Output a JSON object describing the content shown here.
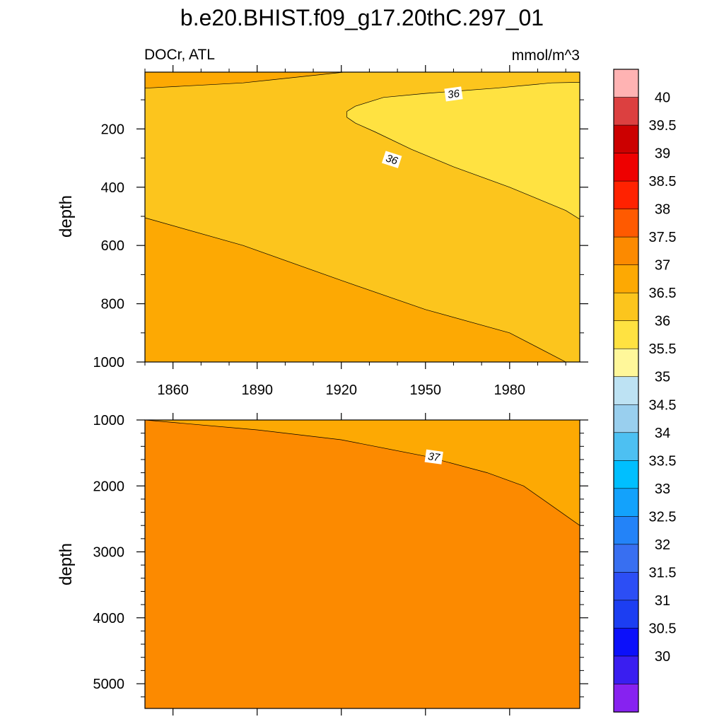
{
  "title": "b.e20.BHIST.f09_g17.20thC.297_01",
  "left_label": "DOCr, ATL",
  "right_label": "mmol/m^3",
  "colors": {
    "c35_36": "#ffe241",
    "c36_365": "#fcc51d",
    "c365_37": "#fda903",
    "c37_375": "#fc8a00"
  },
  "chart_data": [
    {
      "type": "contour",
      "panel": "upper",
      "x_ticks": [
        "1860",
        "1890",
        "1920",
        "1950",
        "1980"
      ],
      "xlim": [
        1850,
        2005
      ],
      "y_ticks": [
        "200",
        "400",
        "600",
        "800",
        "1000"
      ],
      "ylim": [
        1000,
        5
      ],
      "ylabel": "depth",
      "contour_labels": [
        {
          "text": "36",
          "x": 1960,
          "y": 80
        },
        {
          "text": "36",
          "x": 1938,
          "y": 305
        }
      ],
      "isolines": {
        "surface_36_5": [
          [
            1850,
            60
          ],
          [
            1885,
            42
          ],
          [
            1921,
            5
          ]
        ],
        "core_36": [
          [
            2005,
            40
          ],
          [
            1995,
            42
          ],
          [
            1975,
            60
          ],
          [
            1950,
            78
          ],
          [
            1935,
            92
          ],
          [
            1925,
            122
          ],
          [
            1922,
            140
          ],
          [
            1922,
            160
          ],
          [
            1925,
            180
          ],
          [
            1932,
            210
          ],
          [
            1945,
            270
          ],
          [
            1960,
            330
          ],
          [
            1980,
            400
          ],
          [
            2000,
            480
          ],
          [
            2005,
            510
          ]
        ],
        "deep_36_5": [
          [
            1850,
            505
          ],
          [
            1885,
            600
          ],
          [
            1920,
            720
          ],
          [
            1950,
            820
          ],
          [
            1980,
            900
          ],
          [
            2000,
            1000
          ]
        ]
      }
    },
    {
      "type": "contour",
      "panel": "lower",
      "y_ticks": [
        "1000",
        "2000",
        "3000",
        "4000",
        "5000"
      ],
      "ylim": [
        5375,
        1000
      ],
      "xlim": [
        1850,
        2005
      ],
      "ylabel": "depth",
      "contour_labels": [
        {
          "text": "37",
          "x": 1953,
          "y": 1560
        }
      ],
      "isolines": {
        "iso_37": [
          [
            1850,
            1000
          ],
          [
            1890,
            1150
          ],
          [
            1920,
            1300
          ],
          [
            1950,
            1550
          ],
          [
            1972,
            1800
          ],
          [
            1985,
            2000
          ],
          [
            1995,
            2300
          ],
          [
            2005,
            2600
          ]
        ]
      }
    }
  ],
  "colorbar": {
    "labels": [
      "40",
      "39.5",
      "39",
      "38.5",
      "38",
      "37.5",
      "37",
      "36.5",
      "36",
      "35.5",
      "35",
      "34.5",
      "34",
      "33.5",
      "33",
      "32.5",
      "32",
      "31.5",
      "31",
      "30.5",
      "30"
    ],
    "colors": [
      "#ffb3b3",
      "#dc4040",
      "#cc0000",
      "#ee0000",
      "#ff2200",
      "#ff5a00",
      "#fc8a00",
      "#fda903",
      "#fcc51d",
      "#ffe241",
      "#fff79a",
      "#bde2f3",
      "#99cfee",
      "#4dc0f2",
      "#00bfff",
      "#13a2fc",
      "#2383f8",
      "#386ff1",
      "#2c4ef5",
      "#1c3ef2",
      "#0c10fa",
      "#3a1ef0",
      "#8722f0"
    ]
  }
}
